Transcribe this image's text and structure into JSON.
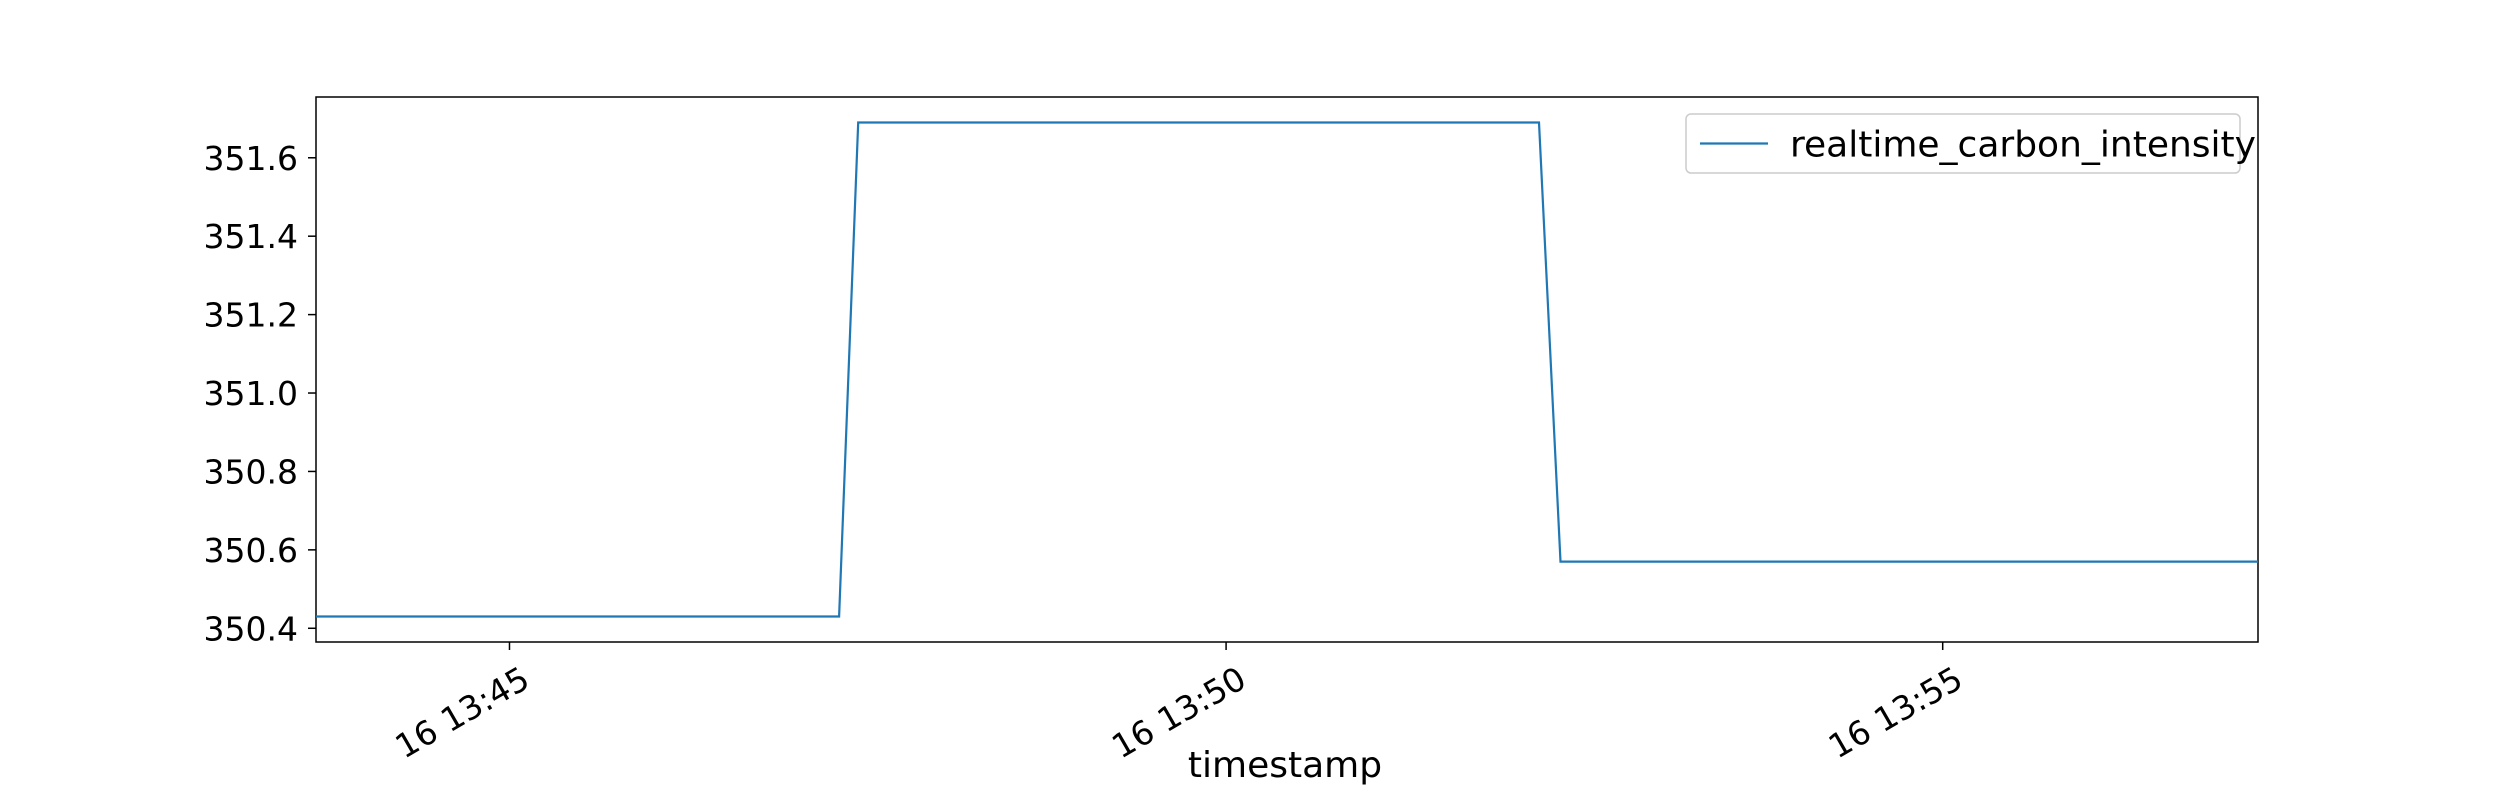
{
  "chart_data": {
    "type": "line",
    "title": "",
    "xlabel": "timestamp",
    "ylabel": "",
    "x_unit": "time (HH:MM)",
    "x_ticks": [
      "16 13:45",
      "16 13:50",
      "16 13:55"
    ],
    "y_ticks": [
      "350.4",
      "350.6",
      "350.8",
      "351.0",
      "351.2",
      "351.4",
      "351.6"
    ],
    "ylim": [
      350.365,
      351.755
    ],
    "xlim": [
      "13:43:39",
      "13:57:12"
    ],
    "grid": false,
    "legend_position": "top-right",
    "series": [
      {
        "name": "realtime_carbon_intensity",
        "color": "#1f77b4",
        "x": [
          "13:43:39",
          "13:47:18",
          "13:47:26",
          "13:52:11",
          "13:52:20",
          "13:57:12"
        ],
        "y": [
          350.43,
          350.43,
          351.69,
          351.69,
          350.57,
          350.57
        ]
      }
    ]
  }
}
